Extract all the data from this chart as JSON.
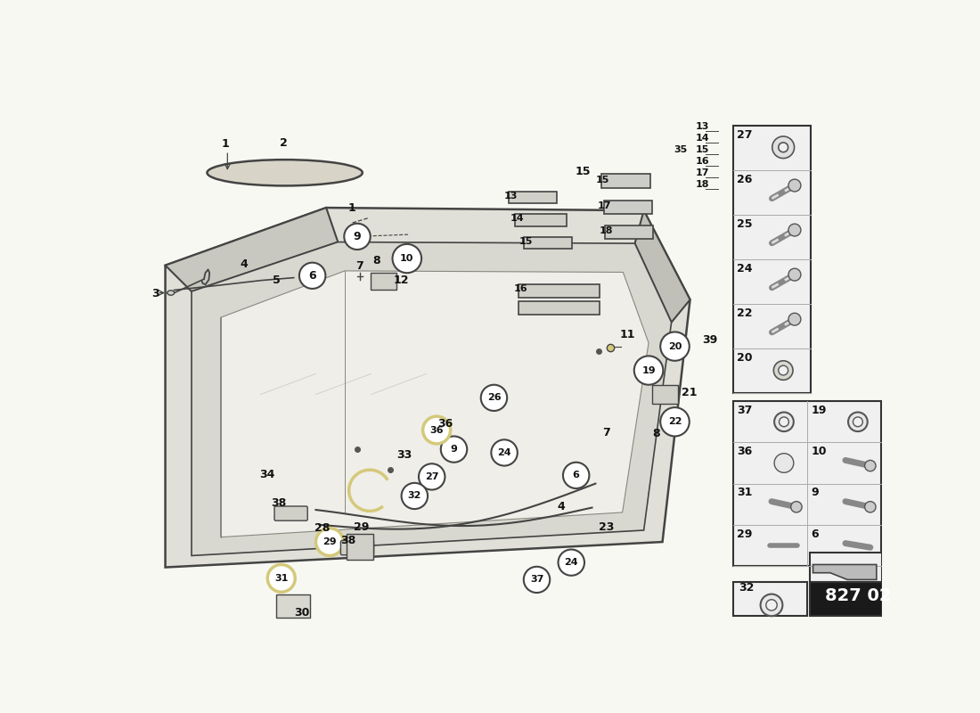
{
  "bg_color": "#f8f8f3",
  "part_number": "827 02",
  "line_color": "#444444",
  "watermark_color": "#d4c97a",
  "yellow_outline": "#d4c97a",
  "panel_bg": "#f0f0f0",
  "panel_border": "#333333"
}
